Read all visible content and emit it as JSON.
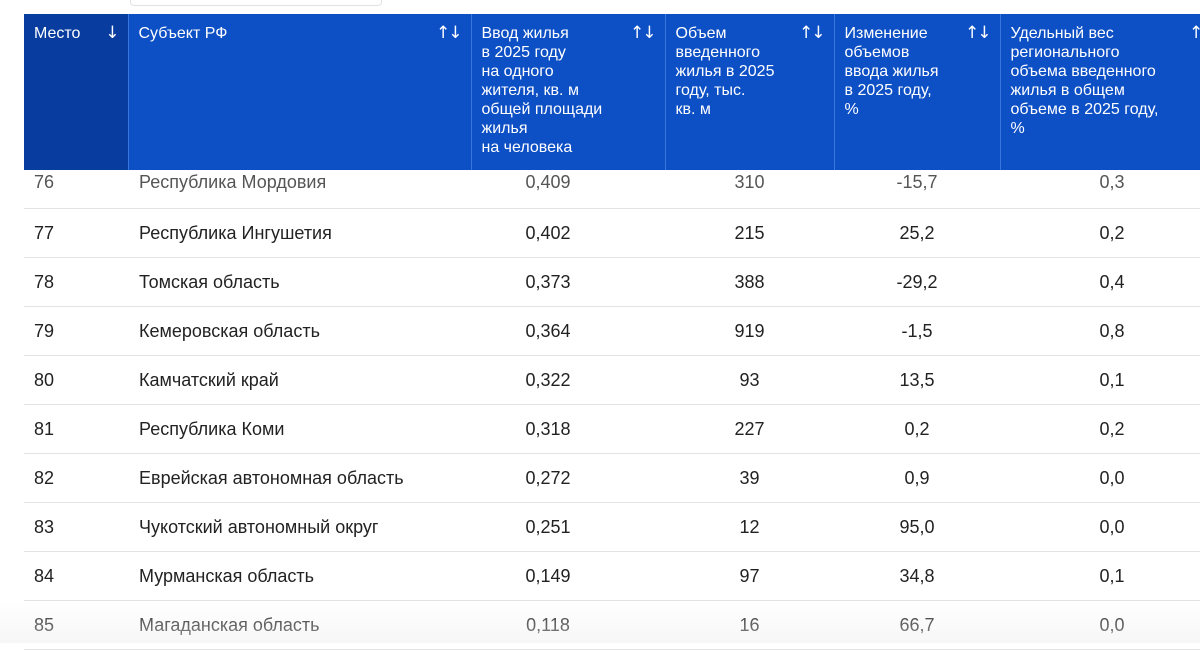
{
  "header": {
    "columns": [
      {
        "label": "Место",
        "sort_icon": "↓"
      },
      {
        "label": "Субъект РФ",
        "sort_icon": "↑↓"
      },
      {
        "label": "Ввод жилья\nв 2025 году\nна одного\nжителя, кв. м\nобщей площади\nжилья\nна человека",
        "sort_icon": "↑↓"
      },
      {
        "label": "Объем\nвведенного\nжилья в 2025\nгоду, тыс.\nкв. м",
        "sort_icon": "↑↓"
      },
      {
        "label": "Изменение\nобъемов\nввода жилья\nв 2025 году,\n%",
        "sort_icon": "↑↓"
      },
      {
        "label": "Удельный вес\nрегионального\nобъема введенного\nжилья в общем\nобъеме в 2025 году,\n%",
        "sort_icon": "↑↓"
      }
    ]
  },
  "rows": [
    {
      "rank": "76",
      "region": "Республика Мордовия",
      "per_capita": "0,409",
      "volume": "310",
      "change": "-15,7",
      "share": "0,3"
    },
    {
      "rank": "77",
      "region": "Республика Ингушетия",
      "per_capita": "0,402",
      "volume": "215",
      "change": "25,2",
      "share": "0,2"
    },
    {
      "rank": "78",
      "region": "Томская область",
      "per_capita": "0,373",
      "volume": "388",
      "change": "-29,2",
      "share": "0,4"
    },
    {
      "rank": "79",
      "region": "Кемеровская область",
      "per_capita": "0,364",
      "volume": "919",
      "change": "-1,5",
      "share": "0,8"
    },
    {
      "rank": "80",
      "region": "Камчатский край",
      "per_capita": "0,322",
      "volume": "93",
      "change": "13,5",
      "share": "0,1"
    },
    {
      "rank": "81",
      "region": "Республика Коми",
      "per_capita": "0,318",
      "volume": "227",
      "change": "0,2",
      "share": "0,2"
    },
    {
      "rank": "82",
      "region": "Еврейская автономная область",
      "per_capita": "0,272",
      "volume": "39",
      "change": "0,9",
      "share": "0,0"
    },
    {
      "rank": "83",
      "region": "Чукотский автономный округ",
      "per_capita": "0,251",
      "volume": "12",
      "change": "95,0",
      "share": "0,0"
    },
    {
      "rank": "84",
      "region": "Мурманская область",
      "per_capita": "0,149",
      "volume": "97",
      "change": "34,8",
      "share": "0,1"
    },
    {
      "rank": "85",
      "region": "Магаданская область",
      "per_capita": "0,118",
      "volume": "16",
      "change": "66,7",
      "share": "0,0"
    }
  ],
  "colors": {
    "header_bg": "#0d4fc4",
    "header_first_bg": "#083c9e",
    "header_text": "#ffffff",
    "row_border": "#e3e3e3"
  }
}
